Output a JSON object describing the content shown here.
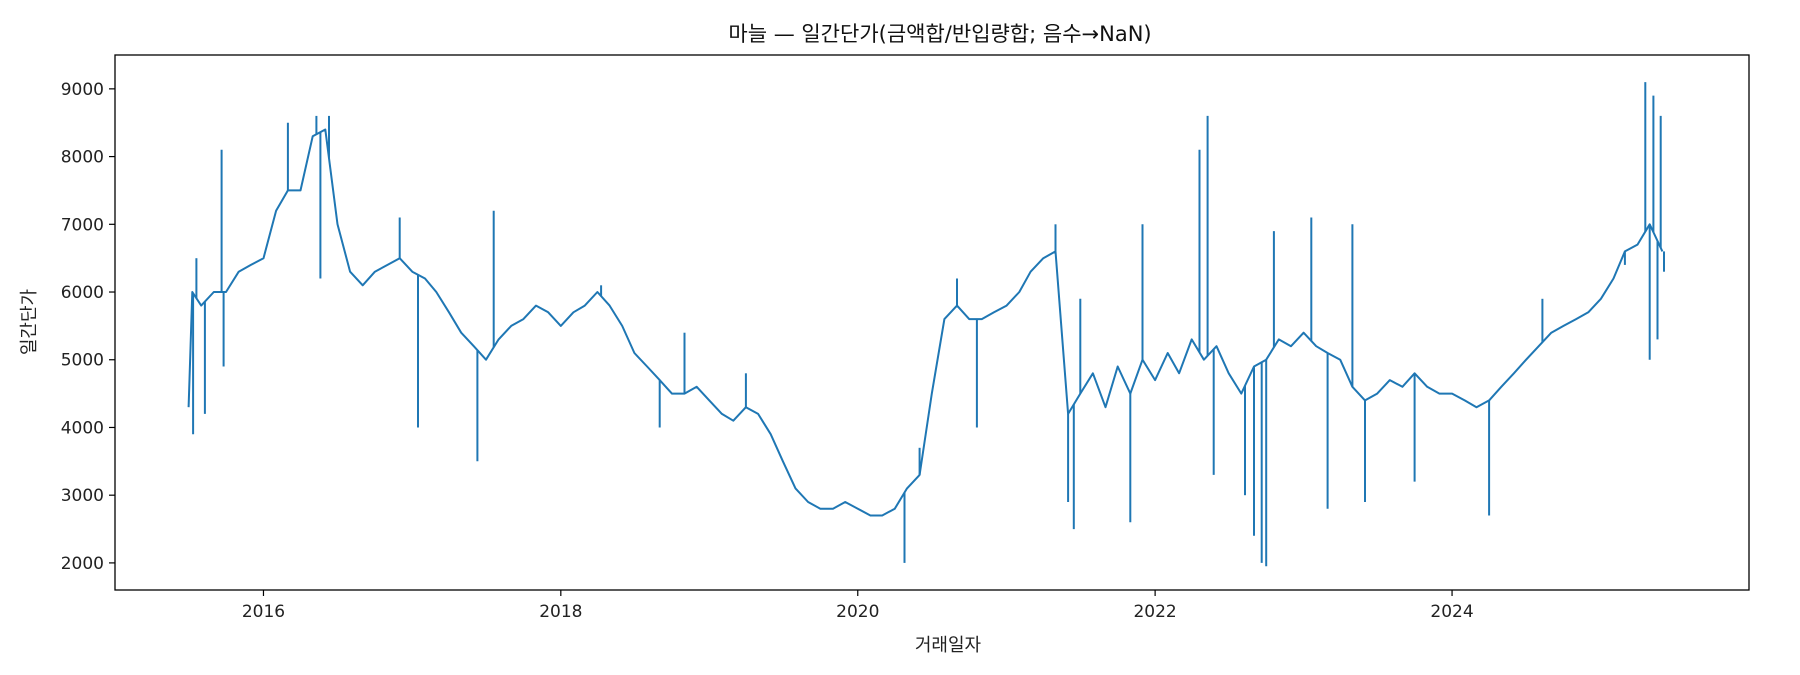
{
  "chart_data": {
    "type": "line",
    "title": "마늘 — 일간단가(금액합/반입량합; 음수→NaN)",
    "xlabel": "거래일자",
    "ylabel": "일간단가",
    "xlim": [
      "2015-01-01",
      "2025-12-31"
    ],
    "ylim": [
      1600,
      9500
    ],
    "x_ticks": [
      "2016",
      "2018",
      "2020",
      "2022",
      "2024"
    ],
    "y_ticks": [
      2000,
      3000,
      4000,
      5000,
      6000,
      7000,
      8000,
      9000
    ],
    "grid": false,
    "legend": "none",
    "series": [
      {
        "color": "#1f77b4",
        "points": [
          [
            "2015-07-01",
            4300
          ],
          [
            "2015-07-10",
            6000
          ],
          [
            "2015-08-01",
            5800
          ],
          [
            "2015-09-01",
            6000
          ],
          [
            "2015-10-01",
            6000
          ],
          [
            "2015-11-01",
            6300
          ],
          [
            "2015-12-01",
            6400
          ],
          [
            "2016-01-01",
            6500
          ],
          [
            "2016-02-01",
            7200
          ],
          [
            "2016-03-01",
            7500
          ],
          [
            "2016-04-01",
            7500
          ],
          [
            "2016-05-01",
            8300
          ],
          [
            "2016-06-01",
            8400
          ],
          [
            "2016-07-01",
            7000
          ],
          [
            "2016-08-01",
            6300
          ],
          [
            "2016-09-01",
            6100
          ],
          [
            "2016-10-01",
            6300
          ],
          [
            "2016-11-01",
            6400
          ],
          [
            "2016-12-01",
            6500
          ],
          [
            "2017-01-01",
            6300
          ],
          [
            "2017-02-01",
            6200
          ],
          [
            "2017-03-01",
            6000
          ],
          [
            "2017-04-01",
            5700
          ],
          [
            "2017-05-01",
            5400
          ],
          [
            "2017-06-01",
            5200
          ],
          [
            "2017-07-01",
            5000
          ],
          [
            "2017-08-01",
            5300
          ],
          [
            "2017-09-01",
            5500
          ],
          [
            "2017-10-01",
            5600
          ],
          [
            "2017-11-01",
            5800
          ],
          [
            "2017-12-01",
            5700
          ],
          [
            "2018-01-01",
            5500
          ],
          [
            "2018-02-01",
            5700
          ],
          [
            "2018-03-01",
            5800
          ],
          [
            "2018-04-01",
            6000
          ],
          [
            "2018-05-01",
            5800
          ],
          [
            "2018-06-01",
            5500
          ],
          [
            "2018-07-01",
            5100
          ],
          [
            "2018-08-01",
            4900
          ],
          [
            "2018-09-01",
            4700
          ],
          [
            "2018-10-01",
            4500
          ],
          [
            "2018-11-01",
            4500
          ],
          [
            "2018-12-01",
            4600
          ],
          [
            "2019-01-01",
            4400
          ],
          [
            "2019-02-01",
            4200
          ],
          [
            "2019-03-01",
            4100
          ],
          [
            "2019-04-01",
            4300
          ],
          [
            "2019-05-01",
            4200
          ],
          [
            "2019-06-01",
            3900
          ],
          [
            "2019-07-01",
            3500
          ],
          [
            "2019-08-01",
            3100
          ],
          [
            "2019-09-01",
            2900
          ],
          [
            "2019-10-01",
            2800
          ],
          [
            "2019-11-01",
            2800
          ],
          [
            "2019-12-01",
            2900
          ],
          [
            "2020-01-01",
            2800
          ],
          [
            "2020-02-01",
            2700
          ],
          [
            "2020-03-01",
            2700
          ],
          [
            "2020-04-01",
            2800
          ],
          [
            "2020-05-01",
            3100
          ],
          [
            "2020-06-01",
            3300
          ],
          [
            "2020-07-01",
            4500
          ],
          [
            "2020-08-01",
            5600
          ],
          [
            "2020-09-01",
            5800
          ],
          [
            "2020-10-01",
            5600
          ],
          [
            "2020-11-01",
            5600
          ],
          [
            "2020-12-01",
            5700
          ],
          [
            "2021-01-01",
            5800
          ],
          [
            "2021-02-01",
            6000
          ],
          [
            "2021-03-01",
            6300
          ],
          [
            "2021-04-01",
            6500
          ],
          [
            "2021-05-01",
            6600
          ],
          [
            "2021-06-01",
            4200
          ],
          [
            "2021-07-01",
            4500
          ],
          [
            "2021-08-01",
            4800
          ],
          [
            "2021-09-01",
            4300
          ],
          [
            "2021-10-01",
            4900
          ],
          [
            "2021-11-01",
            4500
          ],
          [
            "2021-12-01",
            5000
          ],
          [
            "2022-01-01",
            4700
          ],
          [
            "2022-02-01",
            5100
          ],
          [
            "2022-03-01",
            4800
          ],
          [
            "2022-04-01",
            5300
          ],
          [
            "2022-05-01",
            5000
          ],
          [
            "2022-06-01",
            5200
          ],
          [
            "2022-07-01",
            4800
          ],
          [
            "2022-08-01",
            4500
          ],
          [
            "2022-09-01",
            4900
          ],
          [
            "2022-10-01",
            5000
          ],
          [
            "2022-11-01",
            5300
          ],
          [
            "2022-12-01",
            5200
          ],
          [
            "2023-01-01",
            5400
          ],
          [
            "2023-02-01",
            5200
          ],
          [
            "2023-03-01",
            5100
          ],
          [
            "2023-04-01",
            5000
          ],
          [
            "2023-05-01",
            4600
          ],
          [
            "2023-06-01",
            4400
          ],
          [
            "2023-07-01",
            4500
          ],
          [
            "2023-08-01",
            4700
          ],
          [
            "2023-09-01",
            4600
          ],
          [
            "2023-10-01",
            4800
          ],
          [
            "2023-11-01",
            4600
          ],
          [
            "2023-12-01",
            4500
          ],
          [
            "2024-01-01",
            4500
          ],
          [
            "2024-02-01",
            4400
          ],
          [
            "2024-03-01",
            4300
          ],
          [
            "2024-04-01",
            4400
          ],
          [
            "2024-05-01",
            4600
          ],
          [
            "2024-06-01",
            4800
          ],
          [
            "2024-07-01",
            5000
          ],
          [
            "2024-08-01",
            5200
          ],
          [
            "2024-09-01",
            5400
          ],
          [
            "2024-10-01",
            5500
          ],
          [
            "2024-11-01",
            5600
          ],
          [
            "2024-12-01",
            5700
          ],
          [
            "2025-01-01",
            5900
          ],
          [
            "2025-02-01",
            6200
          ],
          [
            "2025-03-01",
            6600
          ],
          [
            "2025-04-01",
            6700
          ],
          [
            "2025-05-01",
            7000
          ],
          [
            "2025-06-01",
            6600
          ]
        ],
        "spikes": [
          [
            "2015-07-12",
            3900
          ],
          [
            "2015-07-20",
            6500
          ],
          [
            "2015-08-10",
            4200
          ],
          [
            "2015-09-20",
            8100
          ],
          [
            "2015-09-25",
            4900
          ],
          [
            "2016-03-01",
            8500
          ],
          [
            "2016-05-10",
            8600
          ],
          [
            "2016-05-20",
            6200
          ],
          [
            "2016-06-10",
            8600
          ],
          [
            "2016-12-01",
            7100
          ],
          [
            "2017-01-15",
            4000
          ],
          [
            "2017-06-10",
            3500
          ],
          [
            "2017-07-20",
            7200
          ],
          [
            "2018-04-10",
            6100
          ],
          [
            "2018-09-01",
            4000
          ],
          [
            "2018-11-01",
            5400
          ],
          [
            "2019-04-01",
            4800
          ],
          [
            "2020-04-25",
            2000
          ],
          [
            "2020-06-01",
            3700
          ],
          [
            "2020-09-01",
            6200
          ],
          [
            "2020-10-20",
            4000
          ],
          [
            "2021-05-01",
            7000
          ],
          [
            "2021-06-01",
            2900
          ],
          [
            "2021-06-15",
            2500
          ],
          [
            "2021-07-01",
            5900
          ],
          [
            "2021-11-01",
            2600
          ],
          [
            "2021-12-01",
            7000
          ],
          [
            "2022-04-20",
            8100
          ],
          [
            "2022-05-10",
            8600
          ],
          [
            "2022-05-25",
            3300
          ],
          [
            "2022-08-10",
            3000
          ],
          [
            "2022-09-01",
            2400
          ],
          [
            "2022-09-20",
            2000
          ],
          [
            "2022-10-01",
            1950
          ],
          [
            "2022-10-20",
            6900
          ],
          [
            "2023-01-20",
            7100
          ],
          [
            "2023-03-01",
            2800
          ],
          [
            "2023-05-01",
            7000
          ],
          [
            "2023-06-01",
            2900
          ],
          [
            "2023-10-01",
            3200
          ],
          [
            "2024-04-01",
            2700
          ],
          [
            "2024-08-10",
            5900
          ],
          [
            "2025-03-01",
            6400
          ],
          [
            "2025-04-20",
            9100
          ],
          [
            "2025-05-01",
            5000
          ],
          [
            "2025-05-10",
            8900
          ],
          [
            "2025-05-20",
            5300
          ],
          [
            "2025-05-28",
            8600
          ],
          [
            "2025-06-05",
            6300
          ]
        ]
      }
    ]
  }
}
